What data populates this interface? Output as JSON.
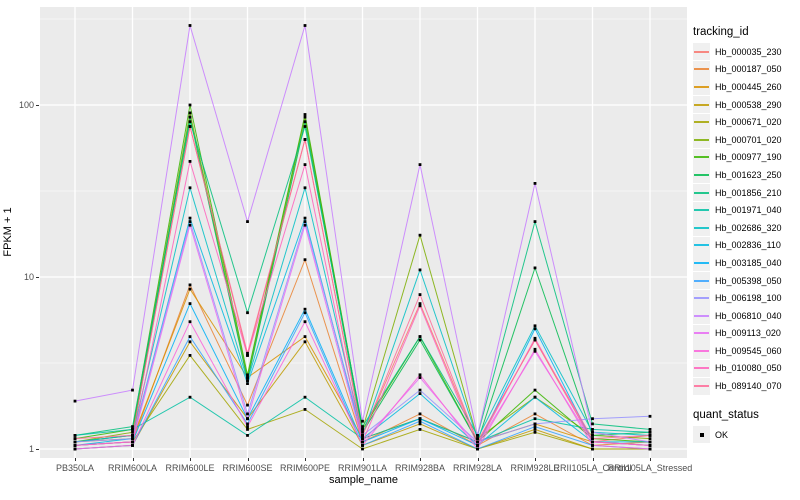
{
  "figure": {
    "xlabel": "sample_name",
    "ylabel": "FPKM + 1",
    "legend_color_title": "tracking_id",
    "legend_shape_title": "quant_status",
    "quant_ok_label": "OK"
  },
  "colors": {
    "panel_bg": "#EBEBEB",
    "grid": "#FFFFFF",
    "point": "#000000",
    "tick_text": "#4D4D4D"
  },
  "chart_data": {
    "type": "line",
    "title": "",
    "xlabel": "sample_name",
    "ylabel": "FPKM + 1",
    "y_scale": "log10",
    "ylim": [
      1,
      320
    ],
    "grid": true,
    "legend_position": "right",
    "y_ticks": [
      {
        "label": "1",
        "value": 1
      },
      {
        "label": "10",
        "value": 10
      },
      {
        "label": "100",
        "value": 100
      }
    ],
    "y_minor_breaks": [
      3.162,
      31.62,
      316.2
    ],
    "categories": [
      "PB350LA",
      "RRIM600LA",
      "RRIM600LE",
      "RRIM600SE",
      "RRIM600PE",
      "RRIM901LA",
      "RRIM928BA",
      "RRIM928LA",
      "RRIM928LE",
      "RRII105LA_Control",
      "RRII105LA_Stressed"
    ],
    "point_shape_legend": {
      "title": "quant_status",
      "entries": [
        {
          "label": "OK",
          "shape": "square",
          "color": "#000000"
        }
      ]
    },
    "series": [
      {
        "name": "Hb_000035_230",
        "color": "#F8766D",
        "values": [
          1.1,
          1.2,
          75,
          3.5,
          63,
          1.2,
          7.0,
          1.1,
          4.3,
          1.1,
          1.2
        ]
      },
      {
        "name": "Hb_000187_050",
        "color": "#EA8331",
        "values": [
          1.05,
          1.1,
          9.0,
          1.8,
          12.6,
          1.1,
          1.6,
          1.05,
          1.6,
          1.05,
          1.1
        ]
      },
      {
        "name": "Hb_000445_260",
        "color": "#D89000",
        "values": [
          1.1,
          1.15,
          8.5,
          2.6,
          4.5,
          1.15,
          1.5,
          1.1,
          1.4,
          1.1,
          1.05
        ]
      },
      {
        "name": "Hb_000538_290",
        "color": "#C09B00",
        "values": [
          1.0,
          1.05,
          4.2,
          1.5,
          4.2,
          1.05,
          1.4,
          1.0,
          1.3,
          1.0,
          1.0
        ]
      },
      {
        "name": "Hb_000671_020",
        "color": "#A3A500",
        "values": [
          1.05,
          1.1,
          3.5,
          1.3,
          1.7,
          1.0,
          1.3,
          1.0,
          1.25,
          1.0,
          1.0
        ]
      },
      {
        "name": "Hb_000701_020",
        "color": "#7CAE00",
        "values": [
          1.1,
          1.25,
          90,
          2.6,
          85,
          1.3,
          17.5,
          1.15,
          2.0,
          1.2,
          1.15
        ]
      },
      {
        "name": "Hb_000977_190",
        "color": "#39B600",
        "values": [
          1.15,
          1.3,
          100,
          2.7,
          88,
          1.3,
          4.5,
          1.1,
          2.2,
          1.15,
          1.1
        ]
      },
      {
        "name": "Hb_001623_250",
        "color": "#00BB4E",
        "values": [
          1.1,
          1.2,
          85,
          2.5,
          80,
          1.25,
          4.3,
          1.1,
          11.3,
          1.2,
          1.25
        ]
      },
      {
        "name": "Hb_001856_210",
        "color": "#00BF7D",
        "values": [
          1.2,
          1.35,
          80,
          6.2,
          75,
          1.35,
          4.5,
          1.2,
          21.0,
          1.4,
          1.3
        ]
      },
      {
        "name": "Hb_001971_040",
        "color": "#00C1A3",
        "values": [
          1.2,
          1.3,
          2.0,
          1.2,
          2.0,
          1.15,
          1.5,
          1.1,
          1.5,
          1.3,
          1.25
        ]
      },
      {
        "name": "Hb_002686_320",
        "color": "#00BFC4",
        "values": [
          1.1,
          1.2,
          33,
          2.5,
          33,
          1.2,
          11.0,
          1.15,
          5.2,
          1.25,
          1.2
        ]
      },
      {
        "name": "Hb_002836_110",
        "color": "#00BAE0",
        "values": [
          1.05,
          1.15,
          22,
          2.4,
          22,
          1.15,
          2.1,
          1.05,
          2.0,
          1.1,
          1.1
        ]
      },
      {
        "name": "Hb_003185_040",
        "color": "#00B0F6",
        "values": [
          1.05,
          1.1,
          7.0,
          1.5,
          6.5,
          1.1,
          1.5,
          1.05,
          5.0,
          1.1,
          1.05
        ]
      },
      {
        "name": "Hb_005398_050",
        "color": "#35A2FF",
        "values": [
          1.0,
          1.05,
          4.5,
          1.4,
          6.2,
          1.05,
          1.45,
          1.0,
          1.35,
          1.05,
          1.0
        ]
      },
      {
        "name": "Hb_006198_100",
        "color": "#9590FF",
        "values": [
          1.1,
          1.15,
          21,
          1.6,
          21,
          1.2,
          2.2,
          1.1,
          1.4,
          1.5,
          1.55
        ]
      },
      {
        "name": "Hb_006810_040",
        "color": "#C77CFF",
        "values": [
          1.9,
          2.2,
          290,
          21,
          290,
          1.45,
          45,
          1.2,
          35,
          1.25,
          1.1
        ]
      },
      {
        "name": "Hb_009113_020",
        "color": "#E76BF3",
        "values": [
          1.05,
          1.1,
          20,
          1.5,
          20,
          1.1,
          2.6,
          1.05,
          3.7,
          1.1,
          1.05
        ]
      },
      {
        "name": "Hb_009545_060",
        "color": "#FA62DB",
        "values": [
          1.0,
          1.05,
          5.5,
          1.35,
          5.5,
          1.05,
          2.7,
          1.0,
          3.8,
          1.05,
          1.0
        ]
      },
      {
        "name": "Hb_010080_050",
        "color": "#FF62BC",
        "values": [
          1.05,
          1.1,
          47,
          3.5,
          45,
          1.1,
          6.8,
          1.05,
          4.4,
          1.1,
          1.05
        ]
      },
      {
        "name": "Hb_089140_070",
        "color": "#FF6A98",
        "values": [
          1.15,
          1.2,
          75,
          3.6,
          63,
          1.2,
          7.9,
          1.1,
          4.3,
          1.15,
          1.2
        ]
      }
    ]
  }
}
